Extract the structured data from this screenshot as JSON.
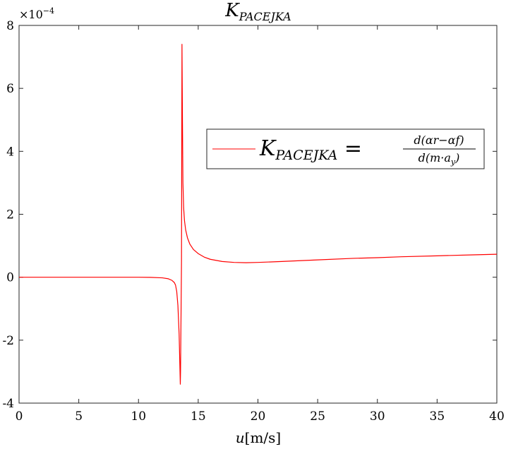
{
  "chart_data": {
    "type": "line",
    "title": "K",
    "title_sub": "PACEJKA",
    "xlabel_var": "u",
    "xlabel_unit": "[m/s]",
    "ylabel": "",
    "y_exponent": "×10",
    "y_exponent_power": "−4",
    "xlim": [
      0,
      40
    ],
    "ylim": [
      -4,
      8
    ],
    "xticks": [
      0,
      5,
      10,
      15,
      20,
      25,
      30,
      35,
      40
    ],
    "xtick_labels": [
      "0",
      "5",
      "10",
      "15",
      "20",
      "25",
      "30",
      "35",
      "40"
    ],
    "yticks": [
      -4,
      -2,
      0,
      2,
      4,
      6,
      8
    ],
    "ytick_labels": [
      "-4",
      "-2",
      "0",
      "2",
      "4",
      "6",
      "8"
    ],
    "grid": false,
    "legend_position": "right-middle",
    "series": [
      {
        "name": "K_PACEJKA = d(αr−αf) / d(m·a_y)",
        "color": "#ff0000",
        "x": [
          0,
          2,
          4,
          6,
          8,
          10,
          11,
          12,
          12.5,
          12.8,
          13.0,
          13.1,
          13.2,
          13.3,
          13.4,
          13.5,
          13.52,
          13.6,
          13.64,
          13.68,
          13.72,
          13.78,
          13.85,
          13.95,
          14.1,
          14.3,
          14.6,
          15.0,
          15.5,
          16.0,
          17.0,
          18.0,
          19.0,
          20.0,
          22.0,
          25.0,
          28.0,
          30.0,
          32.0,
          35.0,
          38.0,
          40.0
        ],
        "y": [
          0,
          0,
          0,
          0,
          0,
          0,
          -0.005,
          -0.02,
          -0.05,
          -0.1,
          -0.17,
          -0.25,
          -0.45,
          -0.9,
          -1.8,
          -3.4,
          -3.0,
          0.5,
          7.4,
          5.0,
          3.0,
          2.2,
          1.8,
          1.5,
          1.25,
          1.05,
          0.88,
          0.75,
          0.64,
          0.57,
          0.5,
          0.47,
          0.46,
          0.47,
          0.5,
          0.55,
          0.6,
          0.62,
          0.65,
          0.68,
          0.71,
          0.73
        ]
      }
    ],
    "legend": {
      "label_main": "K",
      "label_sub": "PACEJKA",
      "label_eq": " = ",
      "frac_num": "d(αr−αf)",
      "frac_den": "d(m·a",
      "frac_den_sub": "y",
      "frac_den_close": ")"
    }
  },
  "colors": {
    "series": "#ff0000",
    "axes": "#262626",
    "background": "#ffffff"
  }
}
